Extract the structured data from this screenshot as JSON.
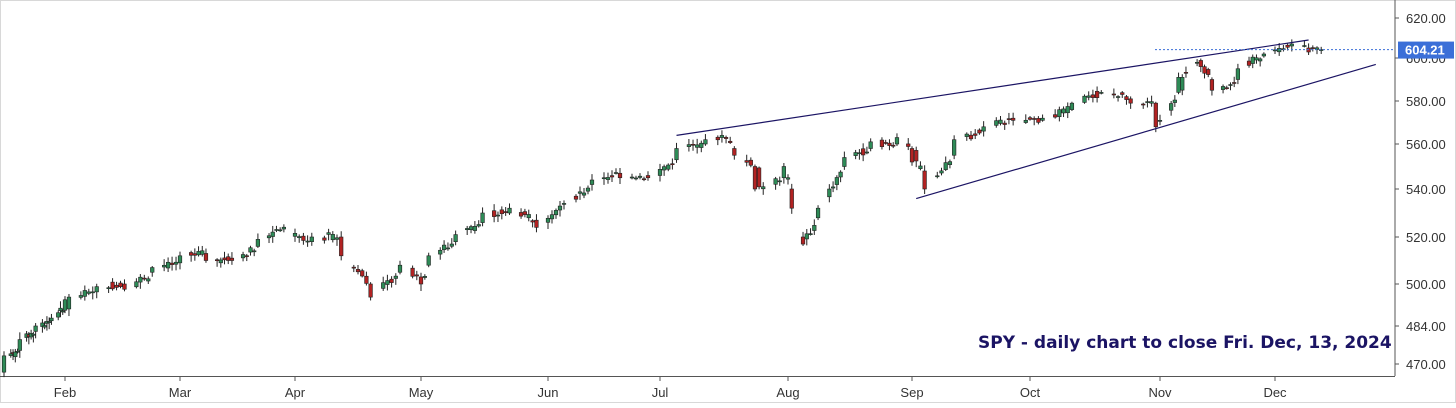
{
  "chart_data": {
    "type": "candlestick",
    "caption": "SPY - daily chart to close Fri. Dec, 13, 2024",
    "last_price_label": "604.21",
    "last_price": 604.21,
    "y_tick_labels": [
      "620.00",
      "600.00",
      "580.00",
      "560.00",
      "540.00",
      "520.00",
      "500.00",
      "484.00",
      "470.00"
    ],
    "y_tick_values": [
      620,
      600,
      580,
      560,
      540,
      520,
      500,
      484,
      470
    ],
    "x_tick_labels": [
      "Feb",
      "Mar",
      "Apr",
      "May",
      "Jun",
      "Jul",
      "Aug",
      "Sep",
      "Oct",
      "Nov",
      "Dec"
    ],
    "x_tick_dates": [
      "2024-02-01",
      "2024-03-01",
      "2024-04-01",
      "2024-05-01",
      "2024-06-03",
      "2024-07-01",
      "2024-08-01",
      "2024-09-03",
      "2024-10-01",
      "2024-11-01",
      "2024-12-02"
    ],
    "x_range": [
      "2024-01-05",
      "2024-12-27"
    ],
    "colors": {
      "up": "#2e8b57",
      "down": "#b22222",
      "trendline": "#1b1464",
      "price_tag": "#3b6fd8",
      "caption": "#1b1464"
    },
    "trendlines": [
      {
        "name": "upper",
        "points": [
          [
            "2024-07-05",
            564
          ],
          [
            "2024-12-10",
            609
          ]
        ]
      },
      {
        "name": "lower",
        "points": [
          [
            "2024-09-04",
            536
          ],
          [
            "2024-12-26",
            597
          ]
        ]
      }
    ],
    "anchors": [
      [
        "2024-01-05",
        467,
        473
      ],
      [
        "2024-01-12",
        475,
        479
      ],
      [
        "2024-01-19",
        482,
        484
      ],
      [
        "2024-01-26",
        486,
        487
      ],
      [
        "2024-02-01",
        490,
        494
      ],
      [
        "2024-02-09",
        497,
        499
      ],
      [
        "2024-02-16",
        500,
        498
      ],
      [
        "2024-02-23",
        505,
        507
      ],
      [
        "2024-03-01",
        509,
        512
      ],
      [
        "2024-03-08",
        513,
        510
      ],
      [
        "2024-03-15",
        511,
        510
      ],
      [
        "2024-03-22",
        516,
        519
      ],
      [
        "2024-03-28",
        523,
        523
      ],
      [
        "2024-04-05",
        518,
        520
      ],
      [
        "2024-04-12",
        520,
        512
      ],
      [
        "2024-04-19",
        500,
        495
      ],
      [
        "2024-04-26",
        505,
        508
      ],
      [
        "2024-05-01",
        503,
        500
      ],
      [
        "2024-05-03",
        508,
        512
      ],
      [
        "2024-05-10",
        518,
        521
      ],
      [
        "2024-05-17",
        526,
        530
      ],
      [
        "2024-05-24",
        530,
        532
      ],
      [
        "2024-05-31",
        527,
        524
      ],
      [
        "2024-06-07",
        534,
        534
      ],
      [
        "2024-06-14",
        542,
        544
      ],
      [
        "2024-06-21",
        547,
        545
      ],
      [
        "2024-06-28",
        546,
        545
      ],
      [
        "2024-07-05",
        553,
        558
      ],
      [
        "2024-07-12",
        560,
        562
      ],
      [
        "2024-07-16",
        563,
        564
      ],
      [
        "2024-07-19",
        558,
        555
      ],
      [
        "2024-07-24",
        550,
        540
      ],
      [
        "2024-07-31",
        545,
        550
      ],
      [
        "2024-08-02",
        540,
        532
      ],
      [
        "2024-08-05",
        520,
        517
      ],
      [
        "2024-08-09",
        528,
        532
      ],
      [
        "2024-08-16",
        550,
        554
      ],
      [
        "2024-08-23",
        558,
        561
      ],
      [
        "2024-08-30",
        560,
        563
      ],
      [
        "2024-09-03",
        558,
        552
      ],
      [
        "2024-09-06",
        548,
        540
      ],
      [
        "2024-09-13",
        555,
        562
      ],
      [
        "2024-09-20",
        566,
        568
      ],
      [
        "2024-09-27",
        572,
        571
      ],
      [
        "2024-10-04",
        571,
        572
      ],
      [
        "2024-10-11",
        576,
        579
      ],
      [
        "2024-10-18",
        584,
        584
      ],
      [
        "2024-10-25",
        581,
        579
      ],
      [
        "2024-10-31",
        579,
        568
      ],
      [
        "2024-11-01",
        571,
        571
      ],
      [
        "2024-11-06",
        584,
        591
      ],
      [
        "2024-11-11",
        598,
        598
      ],
      [
        "2024-11-15",
        590,
        585
      ],
      [
        "2024-11-22",
        590,
        595
      ],
      [
        "2024-11-29",
        601,
        602
      ],
      [
        "2024-12-06",
        606,
        607
      ],
      [
        "2024-12-10",
        605,
        603
      ],
      [
        "2024-12-13",
        604,
        604.21
      ]
    ]
  }
}
